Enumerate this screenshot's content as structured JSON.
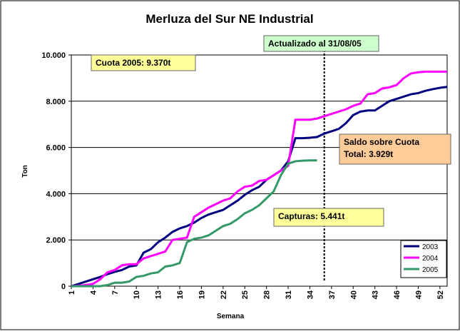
{
  "chart_data": {
    "type": "line",
    "title": "Merluza del Sur NE Industrial",
    "x_label": "Semana",
    "y_label": "Ton",
    "x": [
      1,
      2,
      3,
      4,
      5,
      6,
      7,
      8,
      9,
      10,
      11,
      12,
      13,
      14,
      15,
      16,
      17,
      18,
      19,
      20,
      21,
      22,
      23,
      24,
      25,
      26,
      27,
      28,
      29,
      30,
      31,
      32,
      33,
      34,
      35,
      36,
      37,
      38,
      39,
      40,
      41,
      42,
      43,
      44,
      45,
      46,
      47,
      48,
      49,
      50,
      51,
      52,
      53
    ],
    "xlim": [
      1,
      53
    ],
    "xticks": [
      1,
      4,
      7,
      10,
      13,
      16,
      19,
      22,
      25,
      28,
      31,
      34,
      37,
      40,
      43,
      46,
      49,
      52
    ],
    "ylim": [
      0,
      10000
    ],
    "yticks": [
      0,
      {
        "value": 2000,
        "label": "2.000"
      },
      {
        "value": 4000,
        "label": "4.000"
      },
      {
        "value": 6000,
        "label": "6.000"
      },
      {
        "value": 8000,
        "label": "8.000"
      },
      {
        "value": 10000,
        "label": "10.000"
      }
    ],
    "grid": true,
    "legend": "lower right",
    "series": [
      {
        "name": "2003",
        "color": "#000080",
        "values": [
          0,
          100,
          200,
          300,
          400,
          520,
          620,
          700,
          850,
          900,
          1450,
          1600,
          1900,
          2100,
          2350,
          2500,
          2600,
          2750,
          2950,
          3100,
          3200,
          3300,
          3500,
          3700,
          3950,
          4150,
          4300,
          4600,
          4800,
          5000,
          5400,
          6400,
          6400,
          6420,
          6450,
          6600,
          6700,
          6800,
          7050,
          7400,
          7550,
          7600,
          7600,
          7800,
          8000,
          8100,
          8200,
          8300,
          8350,
          8450,
          8520,
          8580,
          8620
        ]
      },
      {
        "name": "2004",
        "color": "#ff00ff",
        "values": [
          0,
          20,
          50,
          100,
          300,
          600,
          700,
          900,
          950,
          950,
          1200,
          1300,
          1400,
          1500,
          2000,
          2050,
          2100,
          3000,
          3200,
          3400,
          3550,
          3700,
          3800,
          4100,
          4300,
          4350,
          4550,
          4600,
          4800,
          5000,
          5200,
          7200,
          7200,
          7200,
          7250,
          7350,
          7450,
          7550,
          7650,
          7800,
          7900,
          8300,
          8350,
          8550,
          8600,
          8700,
          9000,
          9200,
          9250,
          9280,
          9280,
          9280,
          9280
        ]
      },
      {
        "name": "2005",
        "color": "#339966",
        "values": [
          0,
          0,
          0,
          0,
          0,
          50,
          150,
          150,
          200,
          400,
          450,
          550,
          600,
          850,
          900,
          1000,
          1900,
          2050,
          2100,
          2200,
          2400,
          2600,
          2700,
          2900,
          3150,
          3300,
          3500,
          3800,
          4100,
          4800,
          5300,
          5400,
          5430,
          5441,
          5441,
          null,
          null,
          null,
          null,
          null,
          null,
          null,
          null,
          null,
          null,
          null,
          null,
          null,
          null,
          null,
          null,
          null,
          null
        ]
      }
    ],
    "vline_x": 36,
    "annotations": {
      "quota": "Cuota 2005: 9.370t",
      "updated": "Actualizado al 31/08/05",
      "balance": [
        "Saldo sobre Cuota",
        "Total: 3.929t"
      ],
      "catch": "Capturas: 5.441t"
    }
  }
}
